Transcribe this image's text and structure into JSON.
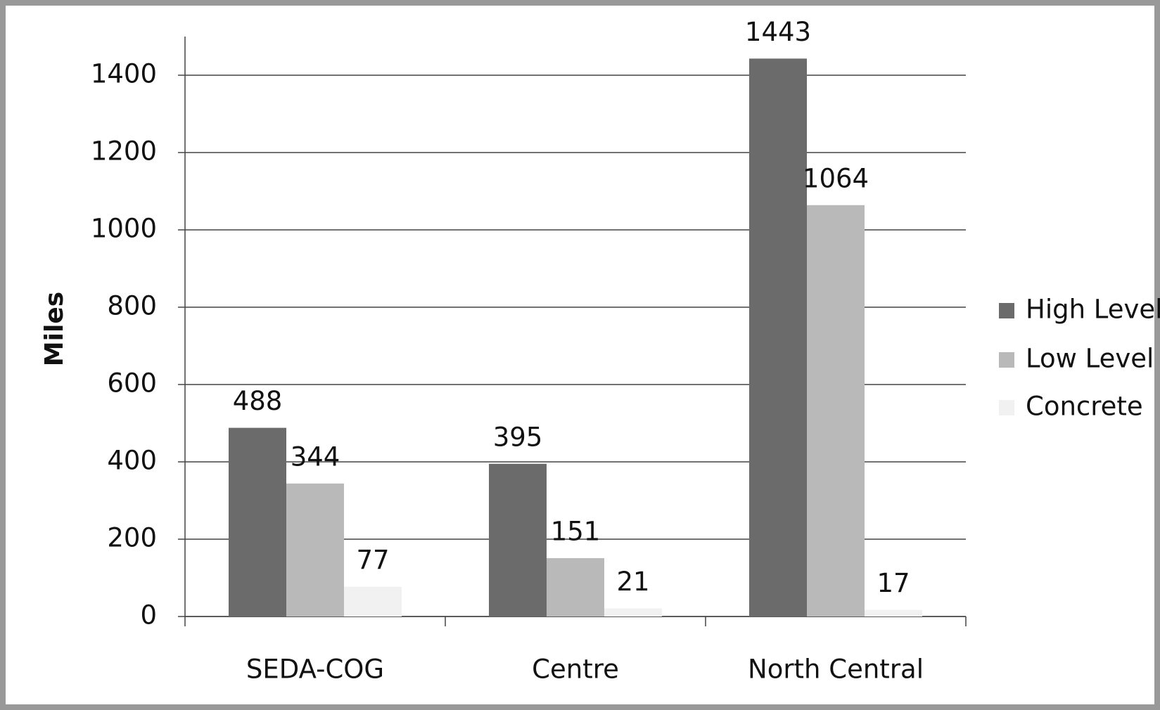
{
  "chart_data": {
    "type": "bar",
    "y_label": "Miles",
    "categories": [
      "SEDA-COG",
      "Centre",
      "North Central"
    ],
    "series": [
      {
        "name": "High Level",
        "color": "#6b6b6b",
        "values": [
          488,
          395,
          1443
        ]
      },
      {
        "name": "Low Level",
        "color": "#b9b9b9",
        "values": [
          344,
          151,
          1064
        ]
      },
      {
        "name": "Concrete",
        "color": "#f1f1f1",
        "values": [
          77,
          21,
          17
        ]
      }
    ],
    "ylim": [
      0,
      1500
    ],
    "yticks": [
      0,
      200,
      400,
      600,
      800,
      1000,
      1200,
      1400
    ],
    "grid": true,
    "legend": "right"
  }
}
